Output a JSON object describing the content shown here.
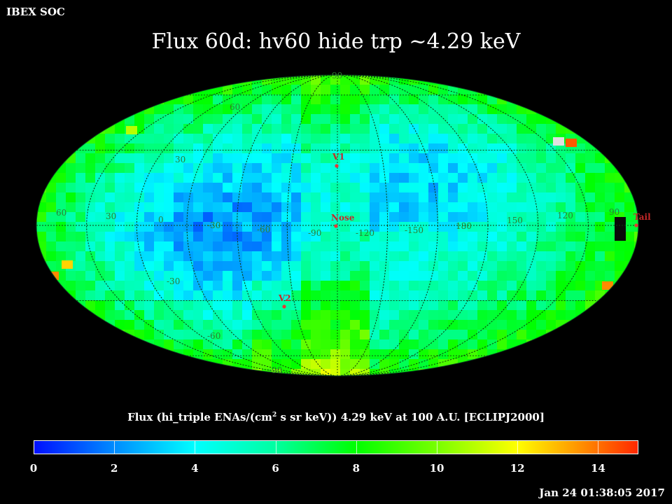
{
  "header": {
    "source": "IBEX SOC",
    "title": "Flux   60d: hv60 hide trp ~4.29 keV"
  },
  "map": {
    "projection": "Aitoff/Hammer all-sky",
    "colors": {
      "low": "#0a2cf0",
      "mid": "#11e6c0",
      "high": "#ff3a00",
      "saturated": "#0a0a0a"
    },
    "lon_labels": [
      "30",
      "0",
      "-30",
      "-60",
      "-90",
      "-120",
      "-150",
      "180",
      "150",
      "120",
      "90",
      "60"
    ],
    "lat_labels": [
      "90",
      "60",
      "30",
      "-30",
      "-60",
      "-90"
    ],
    "points": [
      {
        "label": "V1"
      },
      {
        "label": "Nose"
      },
      {
        "label": "V2"
      },
      {
        "label": "Tail"
      }
    ]
  },
  "colorbar": {
    "title_prefix": "Flux (hi_triple ENAs/(cm",
    "title_sup": "2",
    "title_suffix": " s sr keV))  4.29 keV at 100 A.U. [ECLIPJ2000]",
    "min": 0,
    "max": 15,
    "ticks": [
      "0",
      "2",
      "4",
      "6",
      "8",
      "10",
      "12",
      "14"
    ]
  },
  "footer": {
    "timestamp": "Jan 24 01:38:05 2017"
  }
}
